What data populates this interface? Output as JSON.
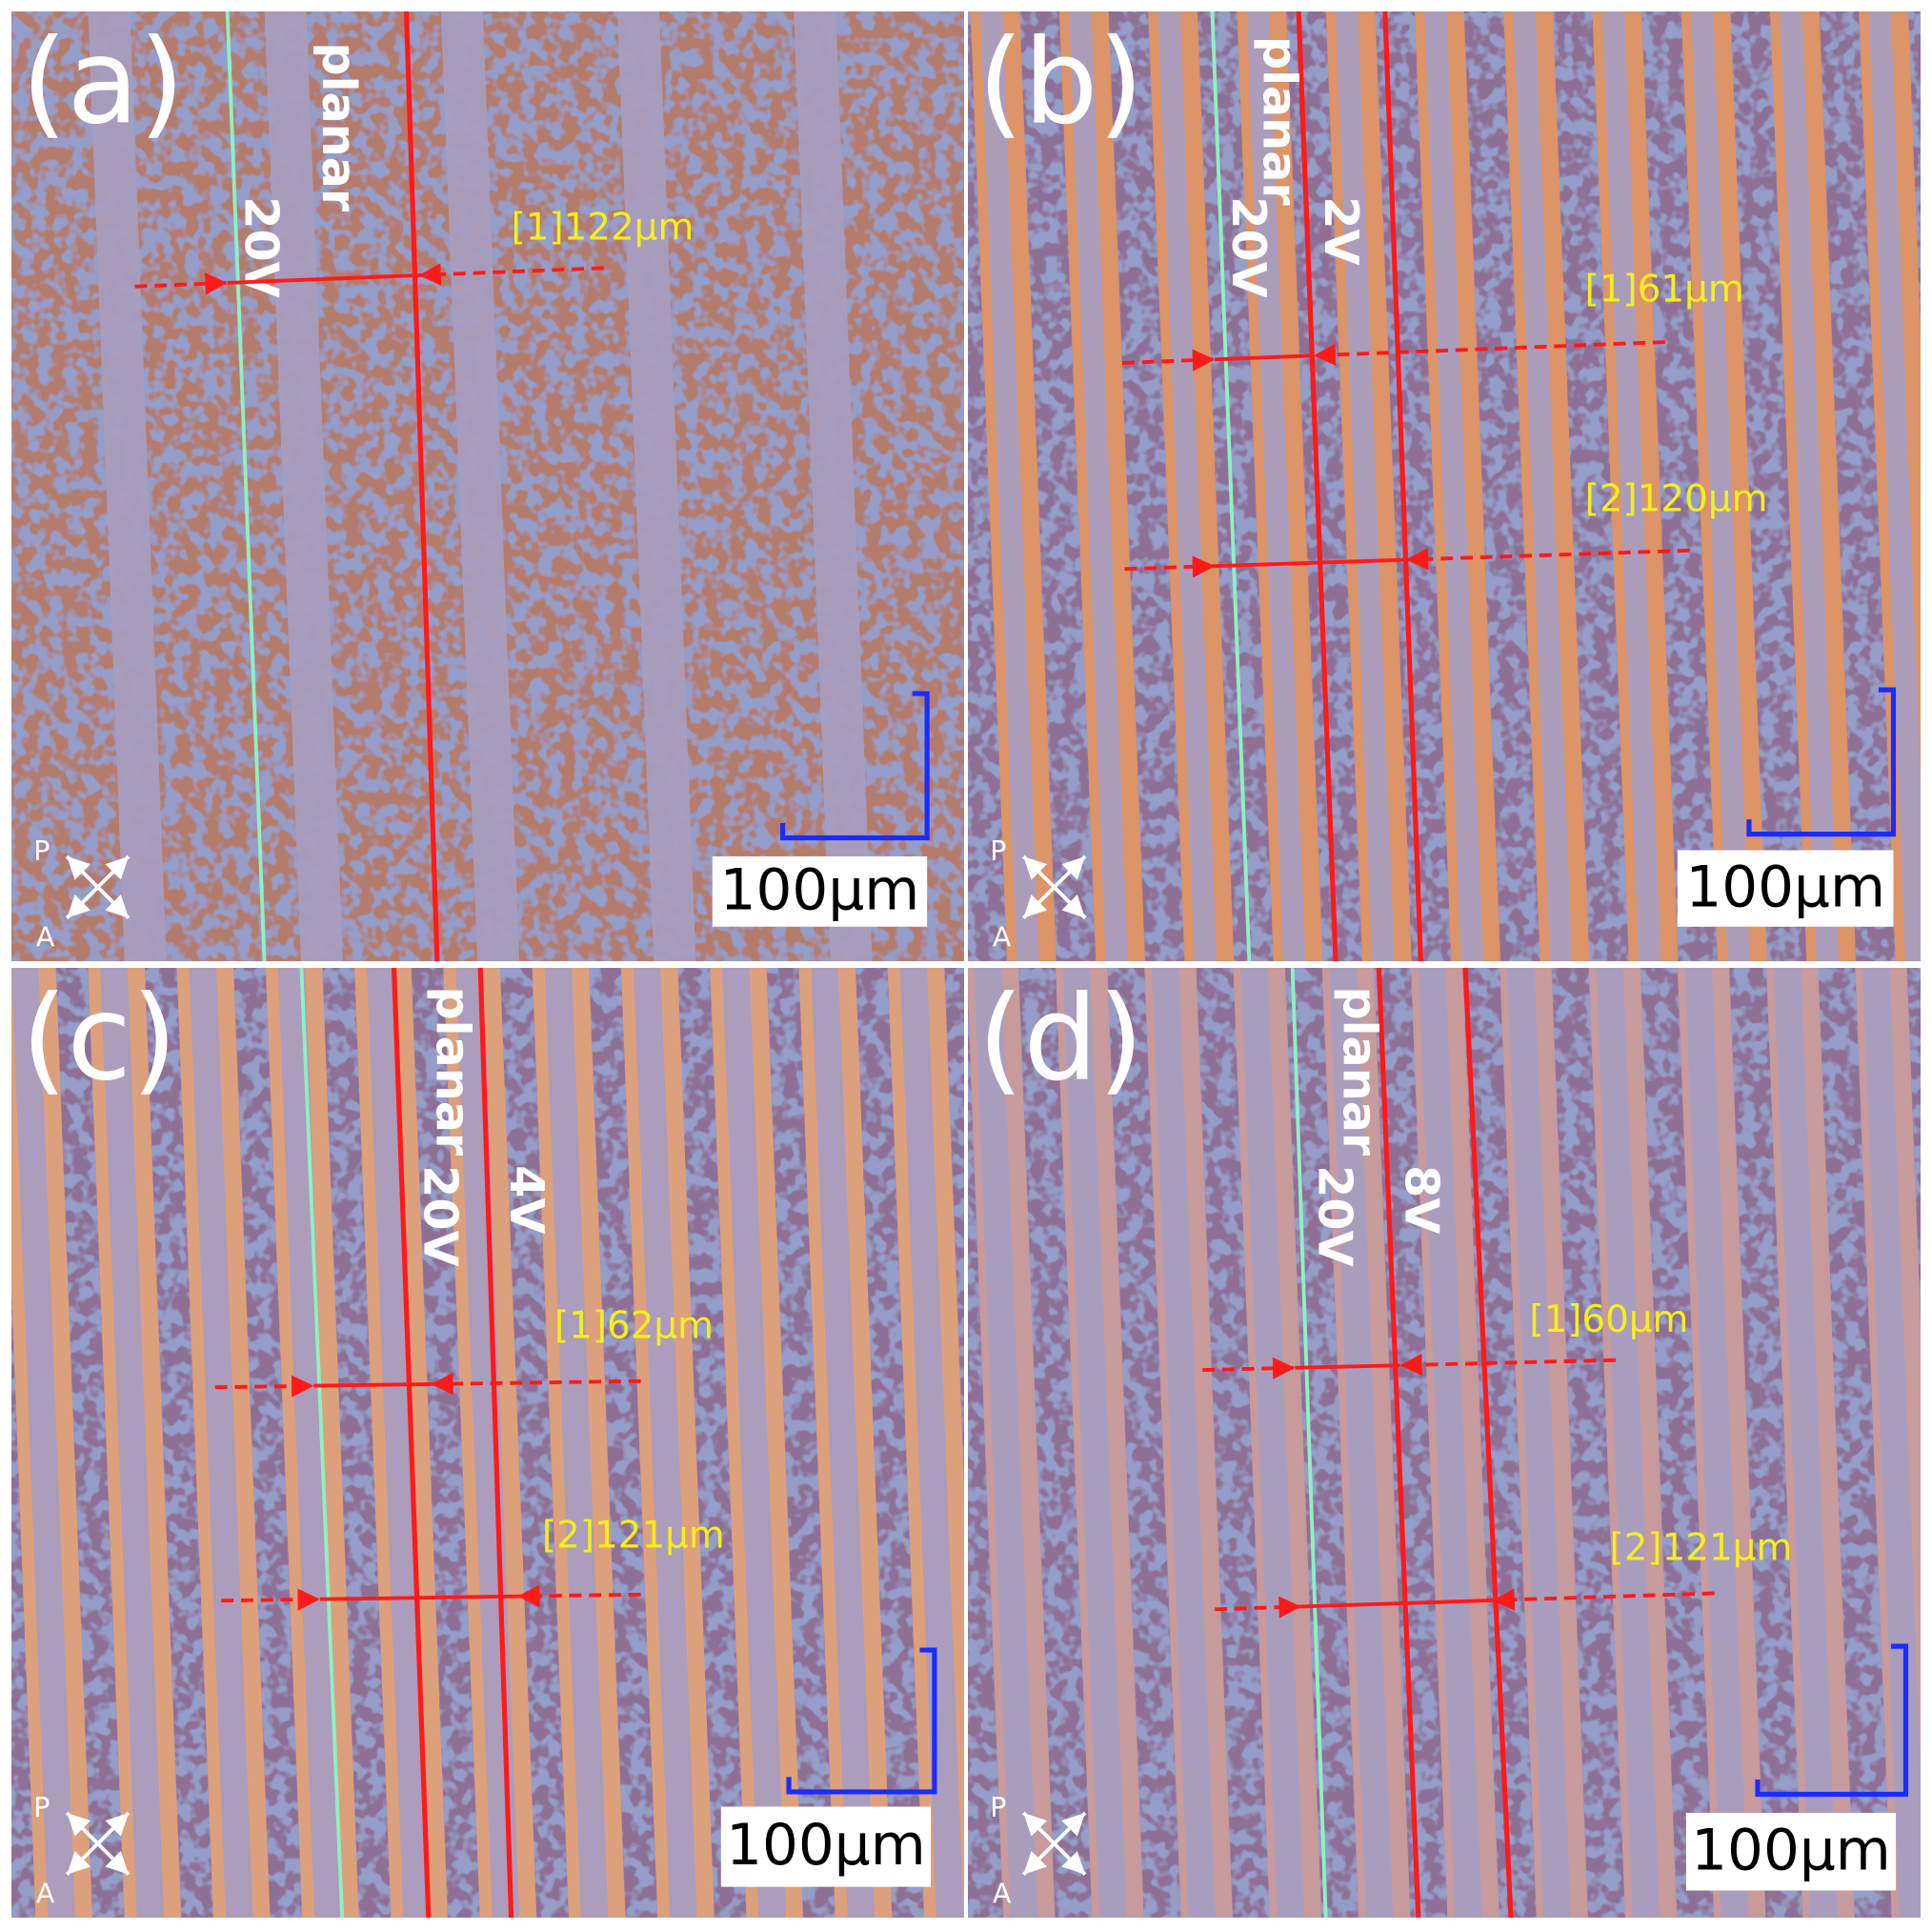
{
  "panels": [
    {
      "label": "(a)",
      "line_labels": [
        "planar",
        "20V"
      ],
      "measurements": [
        "[1]122μm"
      ],
      "scale_bar": "100μm",
      "polarizer": "P",
      "analyzer": "A"
    },
    {
      "label": "(b)",
      "line_labels": [
        "planar",
        "20V",
        "2V"
      ],
      "measurements": [
        "[1]61μm",
        "[2]120μm"
      ],
      "scale_bar": "100μm",
      "polarizer": "P",
      "analyzer": "A"
    },
    {
      "label": "(c)",
      "line_labels": [
        "planar",
        "20V",
        "4V"
      ],
      "measurements": [
        "[1]62μm",
        "[2]121μm"
      ],
      "scale_bar": "100μm",
      "polarizer": "P",
      "analyzer": "A"
    },
    {
      "label": "(d)",
      "line_labels": [
        "planar",
        "20V",
        "8V"
      ],
      "measurements": [
        "[1]60μm",
        "[2]121μm"
      ],
      "scale_bar": "100μm",
      "polarizer": "P",
      "analyzer": "A"
    }
  ]
}
